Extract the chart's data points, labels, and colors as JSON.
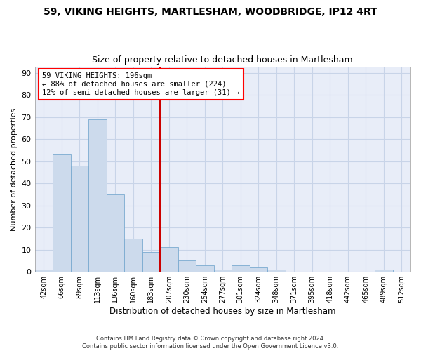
{
  "title_line1": "59, VIKING HEIGHTS, MARTLESHAM, WOODBRIDGE, IP12 4RT",
  "title_line2": "Size of property relative to detached houses in Martlesham",
  "xlabel": "Distribution of detached houses by size in Martlesham",
  "ylabel": "Number of detached properties",
  "footnote": "Contains HM Land Registry data © Crown copyright and database right 2024.\nContains public sector information licensed under the Open Government Licence v3.0.",
  "bin_labels": [
    "42sqm",
    "66sqm",
    "89sqm",
    "113sqm",
    "136sqm",
    "160sqm",
    "183sqm",
    "207sqm",
    "230sqm",
    "254sqm",
    "277sqm",
    "301sqm",
    "324sqm",
    "348sqm",
    "371sqm",
    "395sqm",
    "418sqm",
    "442sqm",
    "465sqm",
    "489sqm",
    "512sqm"
  ],
  "bar_values": [
    1,
    53,
    48,
    69,
    35,
    15,
    9,
    11,
    5,
    3,
    1,
    3,
    2,
    1,
    0,
    0,
    0,
    0,
    0,
    1,
    0
  ],
  "bar_color": "#ccdaec",
  "bar_edge_color": "#7aaad0",
  "vline_x": 6.5,
  "vline_color": "#cc0000",
  "ylim": [
    0,
    93
  ],
  "yticks": [
    0,
    10,
    20,
    30,
    40,
    50,
    60,
    70,
    80,
    90
  ],
  "annotation_text": "59 VIKING HEIGHTS: 196sqm\n← 88% of detached houses are smaller (224)\n12% of semi-detached houses are larger (31) →",
  "annotation_fontsize": 7.5,
  "grid_color": "#c8d4e8",
  "bg_color": "#e8edf8",
  "title_fontsize": 10,
  "subtitle_fontsize": 9,
  "xlabel_fontsize": 8.5,
  "ylabel_fontsize": 8
}
